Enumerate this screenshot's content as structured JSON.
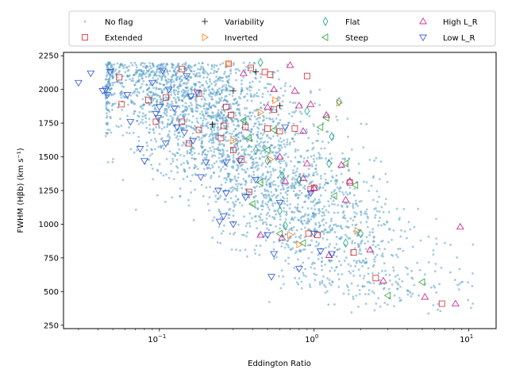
{
  "chart_data": {
    "type": "scatter",
    "title": "",
    "xlabel": "Eddington Ratio",
    "ylabel": "FWHM (Hβb) (km s⁻¹)",
    "xscale": "log",
    "xlim": [
      0.024,
      15
    ],
    "ylim": [
      225,
      2275
    ],
    "x_ticks": [
      {
        "value": 0.1,
        "base": "10",
        "exp": "−1"
      },
      {
        "value": 1,
        "base": "10",
        "exp": "0"
      },
      {
        "value": 10,
        "base": "10",
        "exp": "1"
      }
    ],
    "y_ticks": [
      {
        "value": 250,
        "label": "250"
      },
      {
        "value": 500,
        "label": "500"
      },
      {
        "value": 750,
        "label": "750"
      },
      {
        "value": 1000,
        "label": "1000"
      },
      {
        "value": 1250,
        "label": "1250"
      },
      {
        "value": 1500,
        "label": "1500"
      },
      {
        "value": 1750,
        "label": "1750"
      },
      {
        "value": 2000,
        "label": "2000"
      },
      {
        "value": 2250,
        "label": "2250"
      }
    ],
    "legend_position": "top",
    "legend": [
      {
        "key": "no_flag",
        "label": "No flag",
        "marker": "dot",
        "color": "#5aa0c9"
      },
      {
        "key": "extended",
        "label": "Extended",
        "marker": "square",
        "color": "#d62728"
      },
      {
        "key": "variability",
        "label": "Variability",
        "marker": "plus",
        "color": "#000000"
      },
      {
        "key": "inverted",
        "label": "Inverted",
        "marker": "triangle-right",
        "color": "#ff7f0e"
      },
      {
        "key": "flat",
        "label": "Flat",
        "marker": "diamond",
        "color": "#17a085"
      },
      {
        "key": "steep",
        "label": "Steep",
        "marker": "triangle-left",
        "color": "#2ca02c"
      },
      {
        "key": "high_lr",
        "label": "High L_R",
        "marker": "triangle-up",
        "color": "#c51b8a"
      },
      {
        "key": "low_lr",
        "label": "Low L_R",
        "marker": "triangle-down",
        "color": "#2b50d6"
      }
    ],
    "series": [
      {
        "name": "No flag",
        "marker": "dot",
        "count": 3000,
        "distribution": "dense cloud; FWHM 300–2200 km/s; Eddington ratio ~0.04–11, anticorrelated",
        "seed": 17
      },
      {
        "name": "Extended",
        "marker": "square",
        "points": [
          [
            0.055,
            2090
          ],
          [
            0.057,
            1890
          ],
          [
            0.085,
            1920
          ],
          [
            0.095,
            1760
          ],
          [
            0.11,
            1940
          ],
          [
            0.14,
            1760
          ],
          [
            0.14,
            2150
          ],
          [
            0.155,
            1600
          ],
          [
            0.18,
            1700
          ],
          [
            0.18,
            1970
          ],
          [
            0.25,
            1640
          ],
          [
            0.26,
            1730
          ],
          [
            0.27,
            1870
          ],
          [
            0.28,
            2190
          ],
          [
            0.29,
            1810
          ],
          [
            0.3,
            1550
          ],
          [
            0.34,
            1480
          ],
          [
            0.36,
            1720
          ],
          [
            0.38,
            1240
          ],
          [
            0.39,
            2160
          ],
          [
            0.48,
            2130
          ],
          [
            0.5,
            1710
          ],
          [
            0.52,
            2110
          ],
          [
            0.55,
            1850
          ],
          [
            0.6,
            1690
          ],
          [
            0.75,
            1710
          ],
          [
            0.9,
            2100
          ],
          [
            0.92,
            930
          ],
          [
            0.95,
            1260
          ],
          [
            1.0,
            1270
          ],
          [
            1.05,
            920
          ],
          [
            1.7,
            1310
          ],
          [
            1.8,
            790
          ],
          [
            2.5,
            600
          ],
          [
            6.7,
            410
          ]
        ]
      },
      {
        "name": "Variability",
        "marker": "plus",
        "points": [
          [
            0.3,
            1990
          ],
          [
            0.42,
            2130
          ],
          [
            0.6,
            1880
          ],
          [
            0.22,
            1740
          ]
        ]
      },
      {
        "name": "Inverted",
        "marker": "triangle-right",
        "points": [
          [
            0.28,
            2190
          ],
          [
            0.3,
            1620
          ],
          [
            0.45,
            1830
          ],
          [
            0.52,
            1480
          ],
          [
            0.56,
            1920
          ],
          [
            0.7,
            920
          ],
          [
            0.8,
            850
          ],
          [
            1.45,
            1900
          ],
          [
            1.9,
            950
          ]
        ]
      },
      {
        "name": "Flat",
        "marker": "diamond",
        "points": [
          [
            0.45,
            2200
          ],
          [
            0.42,
            1550
          ],
          [
            0.5,
            1470
          ],
          [
            0.6,
            1100
          ],
          [
            0.62,
            1360
          ],
          [
            0.65,
            990
          ],
          [
            0.8,
            1330
          ],
          [
            0.9,
            1840
          ],
          [
            1.25,
            1450
          ],
          [
            1.3,
            1650
          ],
          [
            1.45,
            1910
          ],
          [
            1.6,
            860
          ],
          [
            2.0,
            930
          ]
        ]
      },
      {
        "name": "Steep",
        "marker": "triangle-left",
        "points": [
          [
            0.35,
            1770
          ],
          [
            0.38,
            1640
          ],
          [
            0.4,
            1150
          ],
          [
            0.45,
            1310
          ],
          [
            0.5,
            1550
          ],
          [
            0.55,
            1700
          ],
          [
            0.6,
            930
          ],
          [
            0.85,
            860
          ],
          [
            1.1,
            1720
          ],
          [
            1.2,
            1790
          ],
          [
            1.35,
            1210
          ],
          [
            1.6,
            1450
          ],
          [
            1.85,
            1290
          ],
          [
            3.0,
            470
          ],
          [
            5.0,
            570
          ]
        ]
      },
      {
        "name": "High L_R",
        "marker": "triangle-up",
        "points": [
          [
            0.35,
            2120
          ],
          [
            0.45,
            920
          ],
          [
            0.5,
            1870
          ],
          [
            0.6,
            1500
          ],
          [
            0.62,
            900
          ],
          [
            0.65,
            1320
          ],
          [
            0.7,
            2180
          ],
          [
            0.75,
            1990
          ],
          [
            0.8,
            1880
          ],
          [
            0.85,
            1690
          ],
          [
            0.85,
            1340
          ],
          [
            0.9,
            1450
          ],
          [
            0.95,
            1890
          ],
          [
            1.0,
            1270
          ],
          [
            1.2,
            1810
          ],
          [
            1.5,
            1440
          ],
          [
            1.6,
            1180
          ],
          [
            1.7,
            1320
          ],
          [
            2.3,
            810
          ],
          [
            2.8,
            580
          ],
          [
            5.2,
            460
          ],
          [
            8.2,
            410
          ],
          [
            8.8,
            980
          ],
          [
            1.25,
            770
          ],
          [
            0.55,
            2000
          ]
        ]
      },
      {
        "name": "Low L_R",
        "marker": "triangle-down",
        "points": [
          [
            0.03,
            2050
          ],
          [
            0.036,
            2120
          ],
          [
            0.043,
            1990
          ],
          [
            0.045,
            2000
          ],
          [
            0.046,
            1960
          ],
          [
            0.048,
            2130
          ],
          [
            0.062,
            1960
          ],
          [
            0.065,
            1760
          ],
          [
            0.075,
            1560
          ],
          [
            0.08,
            1470
          ],
          [
            0.09,
            2050
          ],
          [
            0.095,
            1820
          ],
          [
            0.098,
            1790
          ],
          [
            0.1,
            1870
          ],
          [
            0.105,
            2140
          ],
          [
            0.11,
            1600
          ],
          [
            0.115,
            2000
          ],
          [
            0.125,
            1860
          ],
          [
            0.13,
            1720
          ],
          [
            0.145,
            1680
          ],
          [
            0.15,
            2100
          ],
          [
            0.16,
            1950
          ],
          [
            0.165,
            1620
          ],
          [
            0.175,
            1980
          ],
          [
            0.185,
            1350
          ],
          [
            0.2,
            1460
          ],
          [
            0.24,
            1250
          ],
          [
            0.245,
            1020
          ],
          [
            0.26,
            1060
          ],
          [
            0.27,
            1230
          ],
          [
            0.27,
            1460
          ],
          [
            0.3,
            1000
          ],
          [
            0.33,
            1470
          ],
          [
            0.36,
            1200
          ],
          [
            0.42,
            1330
          ],
          [
            0.5,
            920
          ],
          [
            0.53,
            610
          ],
          [
            0.55,
            780
          ],
          [
            0.6,
            1160
          ],
          [
            0.65,
            1720
          ],
          [
            0.8,
            670
          ],
          [
            1.0,
            930
          ],
          [
            1.1,
            800
          ],
          [
            1.3,
            780
          ],
          [
            0.95,
            1230
          ]
        ]
      }
    ]
  }
}
